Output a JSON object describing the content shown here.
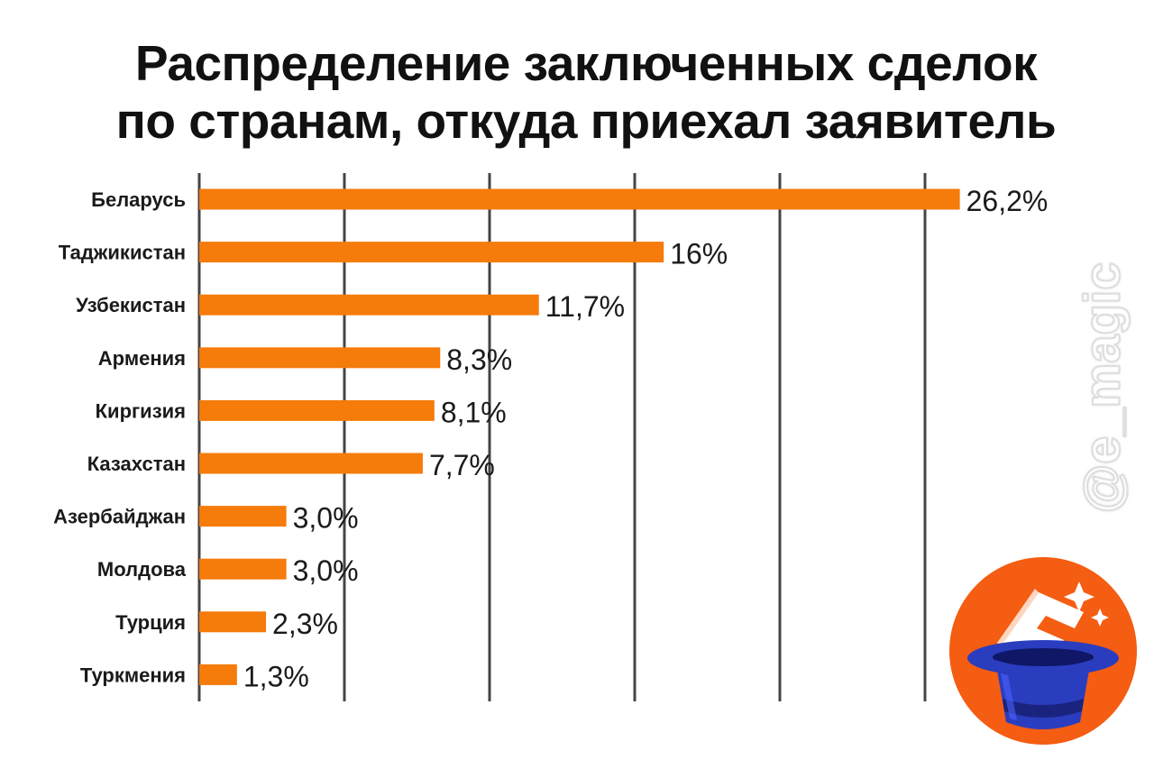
{
  "title": {
    "line1": "Распределение заключенных сделок",
    "line2": "по странам, откуда приехал заявитель"
  },
  "watermark": "@e_magic",
  "logo_icon": "e-magic-hat-logo-icon",
  "colors": {
    "bar": "#f57b0a",
    "grid": "#444444",
    "logo_bg": "#f45d12",
    "hat": "#2a3dbf"
  },
  "chart_data": {
    "type": "bar",
    "orientation": "horizontal",
    "title": "Распределение заключенных сделок по странам, откуда приехал заявитель",
    "xlabel": "",
    "ylabel": "",
    "xlim": [
      0,
      30
    ],
    "grid": true,
    "categories": [
      "Беларусь",
      "Таджикистан",
      "Узбекистан",
      "Армения",
      "Киргизия",
      "Казахстан",
      "Азербайджан",
      "Молдова",
      "Турция",
      "Туркмения"
    ],
    "values": [
      26.2,
      16,
      11.7,
      8.3,
      8.1,
      7.7,
      3.0,
      3.0,
      2.3,
      1.3
    ],
    "labels": [
      "26,2%",
      "16%",
      "11,7%",
      "8,3%",
      "8,1%",
      "7,7%",
      "3,0%",
      "3,0%",
      "2,3%",
      "1,3%"
    ]
  }
}
